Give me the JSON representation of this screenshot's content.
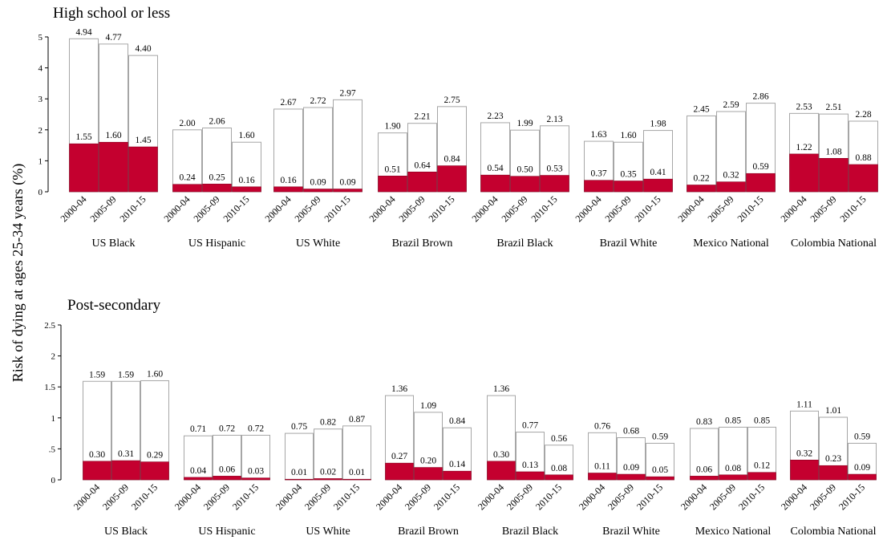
{
  "chart_data": {
    "type": "bar",
    "ylabel": "Risk of dying at ages 25-34 years (%)",
    "colors": {
      "total_fill": "#ffffff",
      "total_stroke": "#a6a6a6",
      "highlight": "#c4002f"
    },
    "panels": [
      {
        "title": "High school or less",
        "ylim": [
          0,
          5
        ],
        "yticks": [
          0,
          1,
          2,
          3,
          4,
          5
        ],
        "ytick_labels": [
          "0",
          "1",
          "2",
          "3",
          "4",
          "5"
        ],
        "periods": [
          "2000-04",
          "2005-09",
          "2010-15"
        ],
        "groups": [
          {
            "name": "US Black",
            "total": [
              4.94,
              4.77,
              4.4
            ],
            "total_labels": [
              "4.94",
              "4.77",
              "4.40"
            ],
            "part": [
              1.55,
              1.6,
              1.45
            ],
            "part_labels": [
              "1.55",
              "1.60",
              "1.45"
            ]
          },
          {
            "name": "US Hispanic",
            "total": [
              2.0,
              2.06,
              1.6
            ],
            "total_labels": [
              "2.00",
              "2.06",
              "1.60"
            ],
            "part": [
              0.24,
              0.25,
              0.16
            ],
            "part_labels": [
              "0.24",
              "0.25",
              "0.16"
            ]
          },
          {
            "name": "US White",
            "total": [
              2.67,
              2.72,
              2.97
            ],
            "total_labels": [
              "2.67",
              "2.72",
              "2.97"
            ],
            "part": [
              0.16,
              0.09,
              0.09
            ],
            "part_labels": [
              "0.16",
              "0.09",
              "0.09"
            ]
          },
          {
            "name": "Brazil Brown",
            "total": [
              1.9,
              2.21,
              2.75
            ],
            "total_labels": [
              "1.90",
              "2.21",
              "2.75"
            ],
            "part": [
              0.51,
              0.64,
              0.84
            ],
            "part_labels": [
              "0.51",
              "0.64",
              "0.84"
            ]
          },
          {
            "name": "Brazil Black",
            "total": [
              2.23,
              1.99,
              2.13
            ],
            "total_labels": [
              "2.23",
              "1.99",
              "2.13"
            ],
            "part": [
              0.54,
              0.5,
              0.53
            ],
            "part_labels": [
              "0.54",
              "0.50",
              "0.53"
            ]
          },
          {
            "name": "Brazil White",
            "total": [
              1.63,
              1.6,
              1.98
            ],
            "total_labels": [
              "1.63",
              "1.60",
              "1.98"
            ],
            "part": [
              0.37,
              0.35,
              0.41
            ],
            "part_labels": [
              "0.37",
              "0.35",
              "0.41"
            ]
          },
          {
            "name": "Mexico National",
            "total": [
              2.45,
              2.59,
              2.86
            ],
            "total_labels": [
              "2.45",
              "2.59",
              "2.86"
            ],
            "part": [
              0.22,
              0.32,
              0.59
            ],
            "part_labels": [
              "0.22",
              "0.32",
              "0.59"
            ]
          },
          {
            "name": "Colombia National",
            "total": [
              2.53,
              2.51,
              2.28
            ],
            "total_labels": [
              "2.53",
              "2.51",
              "2.28"
            ],
            "part": [
              1.22,
              1.08,
              0.88
            ],
            "part_labels": [
              "1.22",
              "1.08",
              "0.88"
            ]
          }
        ]
      },
      {
        "title": "Post-secondary",
        "ylim": [
          0,
          2.5
        ],
        "yticks": [
          0,
          0.5,
          1,
          1.5,
          2,
          2.5
        ],
        "ytick_labels": [
          "0",
          ".5",
          "1",
          "1.5",
          "2",
          "2.5"
        ],
        "periods": [
          "2000-04",
          "2005-09",
          "2010-15"
        ],
        "groups": [
          {
            "name": "US Black",
            "total": [
              1.59,
              1.59,
              1.6
            ],
            "total_labels": [
              "1.59",
              "1.59",
              "1.60"
            ],
            "part": [
              0.3,
              0.31,
              0.29
            ],
            "part_labels": [
              "0.30",
              "0.31",
              "0.29"
            ]
          },
          {
            "name": "US Hispanic",
            "total": [
              0.71,
              0.72,
              0.72
            ],
            "total_labels": [
              "0.71",
              "0.72",
              "0.72"
            ],
            "part": [
              0.04,
              0.06,
              0.03
            ],
            "part_labels": [
              "0.04",
              "0.06",
              "0.03"
            ]
          },
          {
            "name": "US White",
            "total": [
              0.75,
              0.82,
              0.87
            ],
            "total_labels": [
              "0.75",
              "0.82",
              "0.87"
            ],
            "part": [
              0.01,
              0.02,
              0.01
            ],
            "part_labels": [
              "0.01",
              "0.02",
              "0.01"
            ]
          },
          {
            "name": "Brazil Brown",
            "total": [
              1.36,
              1.09,
              0.84
            ],
            "total_labels": [
              "1.36",
              "1.09",
              "0.84"
            ],
            "part": [
              0.27,
              0.2,
              0.14
            ],
            "part_labels": [
              "0.27",
              "0.20",
              "0.14"
            ]
          },
          {
            "name": "Brazil Black",
            "total": [
              1.36,
              0.77,
              0.56
            ],
            "total_labels": [
              "1.36",
              "0.77",
              "0.56"
            ],
            "part": [
              0.3,
              0.13,
              0.08
            ],
            "part_labels": [
              "0.30",
              "0.13",
              "0.08"
            ]
          },
          {
            "name": "Brazil White",
            "total": [
              0.76,
              0.68,
              0.59
            ],
            "total_labels": [
              "0.76",
              "0.68",
              "0.59"
            ],
            "part": [
              0.11,
              0.09,
              0.05
            ],
            "part_labels": [
              "0.11",
              "0.09",
              "0.05"
            ]
          },
          {
            "name": "Mexico National",
            "total": [
              0.83,
              0.85,
              0.85
            ],
            "total_labels": [
              "0.83",
              "0.85",
              "0.85"
            ],
            "part": [
              0.06,
              0.08,
              0.12
            ],
            "part_labels": [
              "0.06",
              "0.08",
              "0.12"
            ]
          },
          {
            "name": "Colombia National",
            "total": [
              1.11,
              1.01,
              0.59
            ],
            "total_labels": [
              "1.11",
              "1.01",
              "0.59"
            ],
            "part": [
              0.32,
              0.23,
              0.09
            ],
            "part_labels": [
              "0.32",
              "0.23",
              "0.09"
            ]
          }
        ]
      }
    ]
  }
}
